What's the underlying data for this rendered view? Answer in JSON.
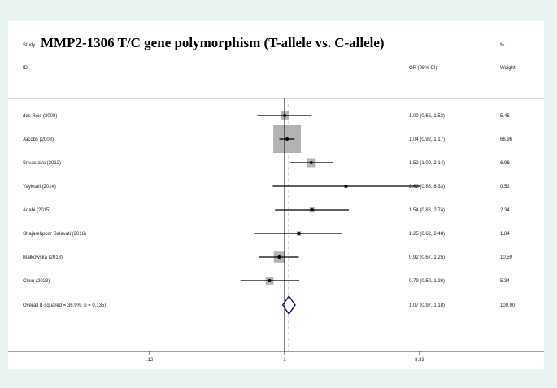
{
  "header": {
    "study_label": "Study",
    "title": "MMP2-1306 T/C gene polymorphism (T-allele vs. C-allele)",
    "id_label": "ID",
    "or_header": "OR (95% CI)",
    "weight_header_top": "%",
    "weight_header": "Weight"
  },
  "colors": {
    "background": "#e9f3ef",
    "panel": "#ffffff",
    "weight_box": "#b3b3b3",
    "ci_line": "#000000",
    "null_line": "#000000",
    "pooled_line": "#8b1a1a",
    "diamond": "#1c1c78"
  },
  "chart_data": {
    "type": "forest",
    "x_scale": "log",
    "xlim": [
      0.12,
      8.33
    ],
    "x_ticks": [
      {
        "value": 0.12,
        "label": ".12"
      },
      {
        "value": 1,
        "label": "1"
      },
      {
        "value": 8.33,
        "label": "8.33"
      }
    ],
    "null_value": 1,
    "pooled_estimate": 1.07,
    "studies": [
      {
        "id": "dos Reis (2008)",
        "or": 1.0,
        "lower": 0.65,
        "upper": 1.53,
        "ci_text": "1.00 (0.65, 1.53)",
        "weight": 5.45,
        "weight_text": "5.45"
      },
      {
        "id": "Jacobs (2008)",
        "or": 1.04,
        "lower": 0.92,
        "upper": 1.17,
        "ci_text": "1.04 (0.92, 1.17)",
        "weight": 66.96,
        "weight_text": "66.96"
      },
      {
        "id": "Srivastava (2012)",
        "or": 1.52,
        "lower": 1.09,
        "upper": 2.14,
        "ci_text": "1.52 (1.09, 2.14)",
        "weight": 6.96,
        "weight_text": "6.96"
      },
      {
        "id": "Yayksali (2014)",
        "or": 2.62,
        "lower": 0.83,
        "upper": 8.33,
        "ci_text": "2.62 (0.83, 8.33)",
        "weight": 0.52,
        "weight_text": "0.52"
      },
      {
        "id": "Adabi (2015)",
        "or": 1.54,
        "lower": 0.86,
        "upper": 2.74,
        "ci_text": "1.54 (0.86, 2.74)",
        "weight": 2.34,
        "weight_text": "2.34"
      },
      {
        "id": "Shajarehpoor Salavati (2016)",
        "or": 1.25,
        "lower": 0.62,
        "upper": 2.48,
        "ci_text": "1.25 (0.62, 2.48)",
        "weight": 1.84,
        "weight_text": "1.84"
      },
      {
        "id": "Białkowska (2018)",
        "or": 0.92,
        "lower": 0.67,
        "upper": 1.25,
        "ci_text": "0.92 (0.67, 1.25)",
        "weight": 10.59,
        "weight_text": "10.59"
      },
      {
        "id": "Chen (2023)",
        "or": 0.79,
        "lower": 0.5,
        "upper": 1.26,
        "ci_text": "0.79 (0.50, 1.26)",
        "weight": 5.34,
        "weight_text": "5.34"
      }
    ],
    "overall": {
      "label": "Overall  (I-squared = 36.9%, p = 0.135)",
      "or": 1.07,
      "lower": 0.97,
      "upper": 1.18,
      "ci_text": "1.07 (0.97, 1.18)",
      "weight_text": "100.00"
    }
  }
}
